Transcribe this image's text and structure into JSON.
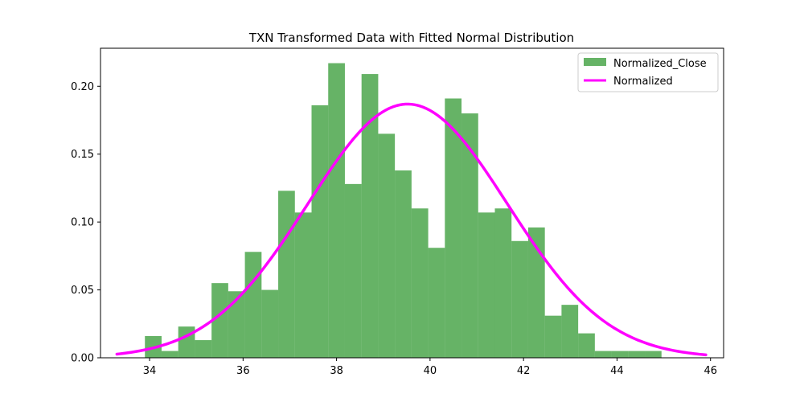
{
  "chart_data": {
    "type": "bar",
    "title": "TXN Transformed Data with Fitted Normal Distribution",
    "xlabel": "",
    "ylabel": "",
    "xlim": [
      32.95,
      46.28
    ],
    "ylim": [
      0,
      0.228
    ],
    "xticks": [
      34,
      36,
      38,
      40,
      42,
      44,
      46
    ],
    "yticks": [
      0.0,
      0.05,
      0.1,
      0.15,
      0.2
    ],
    "ytick_labels": [
      "0.00",
      "0.05",
      "0.10",
      "0.15",
      "0.20"
    ],
    "grid": false,
    "legend_position": "top-right",
    "colors": {
      "hist": "#008000",
      "hist_opacity": 0.6,
      "curve": "#ff00ff"
    },
    "series": [
      {
        "name": "Normalized_Close",
        "type": "histogram",
        "bin_start": 33.9,
        "bin_width": 0.3565,
        "values": [
          0.016,
          0.005,
          0.023,
          0.013,
          0.055,
          0.049,
          0.078,
          0.05,
          0.123,
          0.107,
          0.186,
          0.217,
          0.128,
          0.209,
          0.165,
          0.138,
          0.11,
          0.081,
          0.191,
          0.18,
          0.107,
          0.11,
          0.086,
          0.096,
          0.031,
          0.039,
          0.018,
          0.005,
          0.005,
          0.005,
          0.005
        ]
      },
      {
        "name": "Normalized",
        "type": "line",
        "normal_fit": {
          "mean": 39.52,
          "std": 2.135
        },
        "x_range": [
          33.3,
          45.9
        ]
      }
    ]
  }
}
